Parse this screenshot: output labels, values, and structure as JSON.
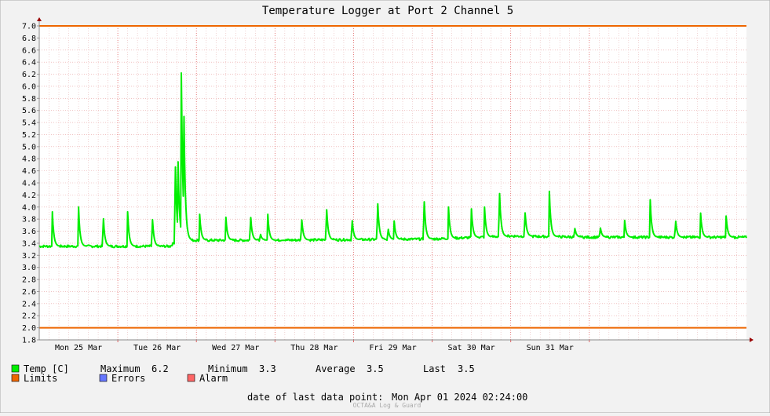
{
  "chart_data": {
    "type": "line",
    "title": "Temperature Logger at Port 2 Channel 5",
    "ylim": [
      1.8,
      7.0
    ],
    "yticks": [
      "1.8",
      "2.0",
      "2.2",
      "2.4",
      "2.6",
      "2.8",
      "3.0",
      "3.2",
      "3.4",
      "3.6",
      "3.8",
      "4.0",
      "4.2",
      "4.4",
      "4.6",
      "4.8",
      "5.0",
      "5.2",
      "5.4",
      "5.6",
      "5.8",
      "6.0",
      "6.2",
      "6.4",
      "6.6",
      "6.8",
      "7.0"
    ],
    "x_range_hours": [
      0,
      216
    ],
    "xtick_labels": [
      {
        "label": "Mon 25 Mar",
        "hour": 12
      },
      {
        "label": "Tue 26 Mar",
        "hour": 36
      },
      {
        "label": "Wed 27 Mar",
        "hour": 60
      },
      {
        "label": "Thu 28 Mar",
        "hour": 84
      },
      {
        "label": "Fri 29 Mar",
        "hour": 108
      },
      {
        "label": "Sat 30 Mar",
        "hour": 132
      },
      {
        "label": "Sun 31 Mar",
        "hour": 156
      }
    ],
    "day_boundaries_hours": [
      24,
      48,
      72,
      96,
      120,
      144,
      168
    ],
    "limits": [
      2.0,
      7.0
    ],
    "series": [
      {
        "name": "Temp [C]",
        "color": "#00ee00",
        "baseline": [
          [
            0,
            3.35
          ],
          [
            40,
            3.35
          ],
          [
            42,
            3.45
          ],
          [
            72,
            3.45
          ],
          [
            120,
            3.47
          ],
          [
            144,
            3.52
          ],
          [
            168,
            3.5
          ],
          [
            216,
            3.5
          ]
        ],
        "spikes": [
          [
            4,
            3.92
          ],
          [
            12,
            4.0
          ],
          [
            19.5,
            3.92
          ],
          [
            27,
            3.92
          ],
          [
            34.5,
            3.9
          ],
          [
            41.5,
            4.97
          ],
          [
            42.4,
            4.75
          ],
          [
            43.4,
            6.22
          ],
          [
            44.2,
            5.5
          ],
          [
            49,
            3.88
          ],
          [
            57,
            3.83
          ],
          [
            64.5,
            3.92
          ],
          [
            67.5,
            3.57
          ],
          [
            69.8,
            3.88
          ],
          [
            72.5,
            3.32
          ],
          [
            80.1,
            3.87
          ],
          [
            87.7,
            4.08
          ],
          [
            95.5,
            3.85
          ],
          [
            103.3,
            4.2
          ],
          [
            106.5,
            3.67
          ],
          [
            108.4,
            3.77
          ],
          [
            117.5,
            4.24
          ],
          [
            125,
            4.0
          ],
          [
            132,
            3.97
          ],
          [
            136,
            4.0
          ],
          [
            140.5,
            4.4
          ],
          [
            148.3,
            4.0
          ],
          [
            155.8,
            4.26
          ],
          [
            163.5,
            3.68
          ],
          [
            171.3,
            3.69
          ],
          [
            178.8,
            3.78
          ],
          [
            186.6,
            4.12
          ],
          [
            194.3,
            3.83
          ],
          [
            202,
            3.9
          ],
          [
            209.8,
            3.85
          ]
        ]
      }
    ],
    "legend": {
      "temp_label": "Temp [C]",
      "maximum_label": "Maximum",
      "maximum_value": "6.2",
      "minimum_label": "Minimum",
      "minimum_value": "3.3",
      "average_label": "Average",
      "average_value": "3.5",
      "last_label": "Last",
      "last_value": "3.5",
      "limits_label": "Limits",
      "errors_label": "Errors",
      "alarm_label": "Alarm",
      "temp_color": "#00ee00",
      "limits_color": "#ee6600",
      "errors_color": "#6677ff",
      "alarm_color": "#ff6666"
    },
    "footer": {
      "last_point_label": "date of last data point:",
      "last_point_value": "Mon Apr 01 2024 02:24:00",
      "watermark": "OCTA&A Log & Guard"
    }
  }
}
